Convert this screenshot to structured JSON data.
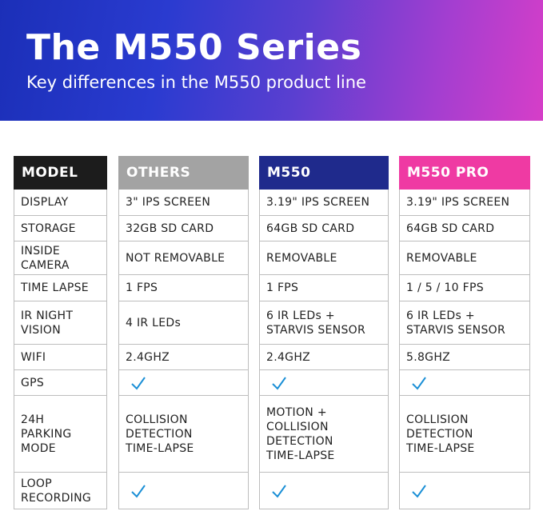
{
  "banner": {
    "title": "The M550 Series",
    "subtitle": "Key differences in the M550 product line",
    "gradient_start": "#1b2fb8",
    "gradient_end": "#d63ec8"
  },
  "colors": {
    "model_header": "#1c1c1c",
    "others_header": "#a3a3a3",
    "m550_header": "#1f2a8c",
    "pro_header": "#ef3aa3",
    "check": "#1a8fd6"
  },
  "table": {
    "headers": {
      "model": "MODEL",
      "others": "OTHERS",
      "m550": "M550",
      "pro": "M550 PRO"
    },
    "rows": [
      {
        "label": "DISPLAY",
        "others": "3\" IPS SCREEN",
        "m550": "3.19\" IPS SCREEN",
        "pro": "3.19\" IPS SCREEN"
      },
      {
        "label": "STORAGE",
        "others": "32GB SD CARD",
        "m550": "64GB SD CARD",
        "pro": "64GB SD CARD"
      },
      {
        "label": "INSIDE\nCAMERA",
        "others": "NOT REMOVABLE",
        "m550": "REMOVABLE",
        "pro": "REMOVABLE"
      },
      {
        "label": "TIME LAPSE",
        "others": "1 FPS",
        "m550": "1 FPS",
        "pro": "1 / 5 / 10 FPS"
      },
      {
        "label": "IR NIGHT\nVISION",
        "others": "4 IR LEDs",
        "m550": "6 IR LEDs +\nSTARVIS SENSOR",
        "pro": "6 IR LEDs +\nSTARVIS SENSOR"
      },
      {
        "label": "WIFI",
        "others": "2.4GHZ",
        "m550": "2.4GHZ",
        "pro": "5.8GHZ"
      },
      {
        "label": "GPS",
        "others": "check",
        "m550": "check",
        "pro": "check"
      },
      {
        "label": "24H\nPARKING\nMODE",
        "others": "COLLISION\nDETECTION\nTIME-LAPSE",
        "m550": "MOTION +\nCOLLISION\nDETECTION\nTIME-LAPSE",
        "pro": "COLLISION\nDETECTION\nTIME-LAPSE"
      },
      {
        "label": "LOOP\nRECORDING",
        "others": "check",
        "m550": "check",
        "pro": "check"
      }
    ]
  }
}
